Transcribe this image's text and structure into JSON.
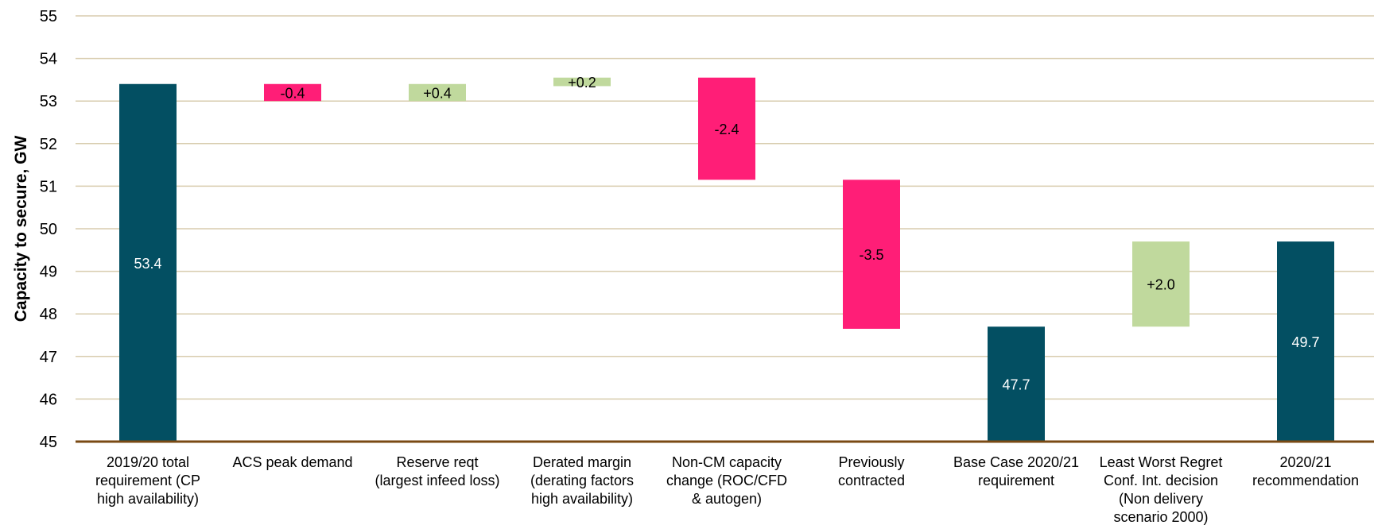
{
  "chart_data": {
    "type": "waterfall",
    "title": "",
    "xlabel": "",
    "ylabel": "Capacity to secure, GW",
    "ylim": [
      45,
      55
    ],
    "yticks": [
      45,
      46,
      47,
      48,
      49,
      50,
      51,
      52,
      53,
      54,
      55
    ],
    "grid": true,
    "legend": "none",
    "colors": {
      "total": "#034f62",
      "decrease": "#ff1e77",
      "increase": "#c0d99d",
      "grid": "#d8ccae",
      "baseline": "#7a4a14"
    },
    "bars": [
      {
        "category": [
          "2019/20 total",
          "requirement (CP",
          "high availability)"
        ],
        "kind": "total",
        "start": 45,
        "end": 53.4,
        "label": "53.4"
      },
      {
        "category": [
          "ACS peak demand"
        ],
        "kind": "decrease",
        "start": 53.4,
        "end": 53.0,
        "label": "-0.4"
      },
      {
        "category": [
          "Reserve reqt",
          "(largest infeed loss)"
        ],
        "kind": "increase",
        "start": 53.0,
        "end": 53.4,
        "label": "+0.4"
      },
      {
        "category": [
          "Derated margin",
          "(derating factors",
          "high availability)"
        ],
        "kind": "increase",
        "start": 53.35,
        "end": 53.55,
        "label": "+0.2"
      },
      {
        "category": [
          "Non-CM capacity",
          "change (ROC/CFD",
          "& autogen)"
        ],
        "kind": "decrease",
        "start": 53.55,
        "end": 51.15,
        "label": "-2.4"
      },
      {
        "category": [
          "Previously",
          "contracted"
        ],
        "kind": "decrease",
        "start": 51.15,
        "end": 47.65,
        "label": "-3.5"
      },
      {
        "category": [
          "Base Case 2020/21",
          "requirement"
        ],
        "kind": "total",
        "start": 45,
        "end": 47.7,
        "label": "47.7"
      },
      {
        "category": [
          "Least Worst Regret",
          "Conf. Int. decision",
          "(Non delivery",
          "scenario 2000)"
        ],
        "kind": "increase",
        "start": 47.7,
        "end": 49.7,
        "label": "+2.0"
      },
      {
        "category": [
          "2020/21",
          "recommendation"
        ],
        "kind": "total",
        "start": 45,
        "end": 49.7,
        "label": "49.7"
      }
    ]
  }
}
